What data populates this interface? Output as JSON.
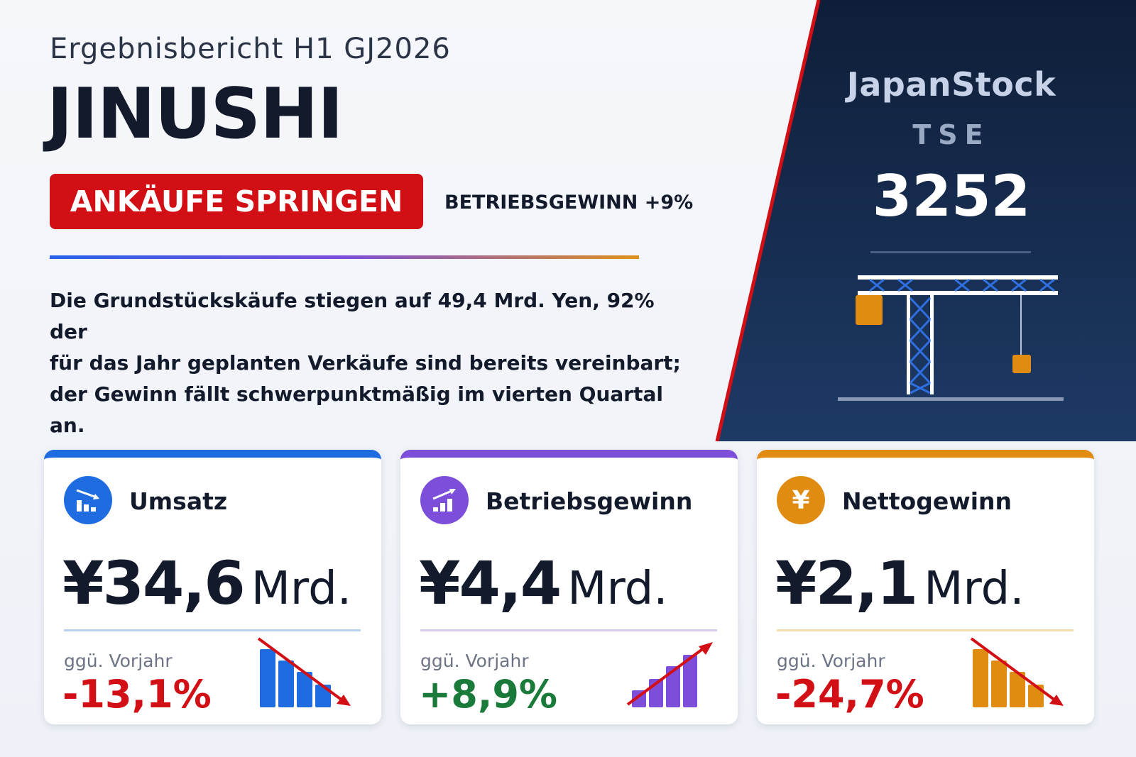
{
  "header": {
    "subtitle": "Ergebnisbericht H1 GJ2026",
    "company": "JINUSHI",
    "badge": "ANKÄUFE SPRINGEN",
    "tagline": "BETRIEBSGEWINN +9%"
  },
  "summary": {
    "lines": [
      "Die Grundstückskäufe stiegen auf 49,4 Mrd. Yen, 92% der",
      "für das Jahr geplanten Verkäufe sind bereits vereinbart;",
      "der Gewinn fällt schwerpunktmäßig im vierten Quartal an."
    ]
  },
  "brand": {
    "name": "JapanStock",
    "exchange": "TSE",
    "code": "3252",
    "icon": "construction-crane-icon"
  },
  "colors": {
    "accent_red": "#d10f14",
    "panel_navy": "#132648",
    "blue": "#1f6be0",
    "purple": "#7d4ed9",
    "orange": "#e08b12",
    "negative": "#d10f14",
    "positive": "#1a7a3a"
  },
  "cards": [
    {
      "label": "Umsatz",
      "icon": "chart-down-icon",
      "value": "¥34,6",
      "unit": "Mrd.",
      "yoy_label": "ggü. Vorjahr",
      "yoy": "-13,1%",
      "trend": "down",
      "accent": "#1f6be0",
      "rule": "#b8d2ee",
      "yoy_color": "#d10f14"
    },
    {
      "label": "Betriebsgewinn",
      "icon": "chart-up-icon",
      "value": "¥4,4",
      "unit": "Mrd.",
      "yoy_label": "ggü. Vorjahr",
      "yoy": "+8,9%",
      "trend": "up",
      "accent": "#7d4ed9",
      "rule": "#d6cbef",
      "yoy_color": "#1a7a3a"
    },
    {
      "label": "Nettogewinn",
      "icon": "yen-icon",
      "value": "¥2,1",
      "unit": "Mrd.",
      "yoy_label": "ggü. Vorjahr",
      "yoy": "-24,7%",
      "trend": "down",
      "accent": "#e08b12",
      "rule": "#f3dfae",
      "yoy_color": "#d10f14"
    }
  ],
  "yen_glyph": "¥"
}
